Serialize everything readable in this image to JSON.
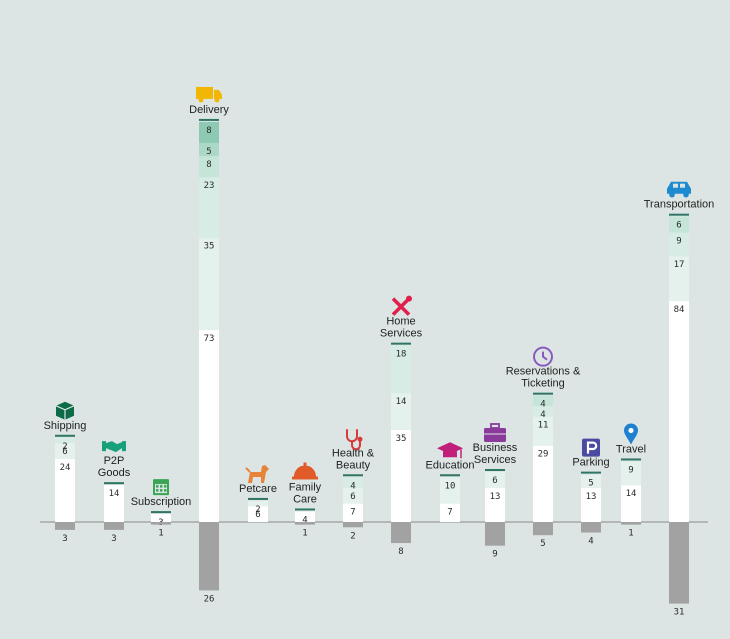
{
  "chart_data": {
    "type": "bar",
    "stacked": true,
    "diverging": true,
    "grid": false,
    "legend": "none",
    "palette": {
      "segments_bottom_to_top": [
        "#ffffff",
        "#e4f1ec",
        "#d6ece4",
        "#c5e5d9",
        "#acd9c7",
        "#8ecab3",
        "#2b6a5a",
        "#1ea2d4"
      ],
      "negative": "#a2a2a2",
      "baseline": "#8a8a8a"
    },
    "categories": [
      {
        "label": [
          "Shipping"
        ],
        "icon": "package-icon",
        "icon_color": "#0e6b48",
        "segments": [
          24,
          6,
          2
        ],
        "negative": 3
      },
      {
        "label": [
          "P2P",
          "Goods"
        ],
        "icon": "handshake-icon",
        "icon_color": "#17a07a",
        "segments": [
          14
        ],
        "negative": 3
      },
      {
        "label": [
          "Subscription"
        ],
        "icon": "calendar-icon",
        "icon_color": "#3aa655",
        "segments": [
          3
        ],
        "negative": 1
      },
      {
        "label": [
          "Delivery"
        ],
        "icon": "truck-icon",
        "icon_color": "#f2b705",
        "segments": [
          73,
          35,
          23,
          8,
          5,
          8
        ],
        "negative": 26
      },
      {
        "label": [
          "Petcare"
        ],
        "icon": "dog-icon",
        "icon_color": "#e8833a",
        "segments": [
          6,
          2
        ],
        "negative": 0
      },
      {
        "label": [
          "Family",
          "Care"
        ],
        "icon": "service-bell-icon",
        "icon_color": "#e05a2a",
        "segments": [
          4
        ],
        "negative": 1
      },
      {
        "label": [
          "Health &",
          "Beauty"
        ],
        "icon": "stethoscope-icon",
        "icon_color": "#d63a3a",
        "segments": [
          7,
          6,
          4
        ],
        "negative": 2
      },
      {
        "label": [
          "Home",
          "Services"
        ],
        "icon": "tools-icon",
        "icon_color": "#e0204a",
        "segments": [
          35,
          14,
          18
        ],
        "negative": 8
      },
      {
        "label": [
          "Education"
        ],
        "icon": "graduation-cap-icon",
        "icon_color": "#c0207a",
        "segments": [
          7,
          10
        ],
        "negative": 0
      },
      {
        "label": [
          "Business",
          "Services"
        ],
        "icon": "briefcase-icon",
        "icon_color": "#8a3a9a",
        "segments": [
          13,
          6
        ],
        "negative": 9
      },
      {
        "label": [
          "Reservations &",
          "Ticketing"
        ],
        "icon": "clock-icon",
        "icon_color": "#8a5ac0",
        "segments": [
          29,
          11,
          4,
          4
        ],
        "negative": 5
      },
      {
        "label": [
          "Parking"
        ],
        "icon": "parking-sign-icon",
        "icon_color": "#4a4aa0",
        "segments": [
          13,
          5
        ],
        "negative": 4
      },
      {
        "label": [
          "Travel"
        ],
        "icon": "map-pin-icon",
        "icon_color": "#1f7fd0",
        "segments": [
          14,
          9
        ],
        "negative": 1
      },
      {
        "label": [
          "Transportation"
        ],
        "icon": "car-icon",
        "icon_color": "#1e8ad0",
        "segments": [
          84,
          17,
          9,
          6
        ],
        "negative": 31
      }
    ]
  }
}
